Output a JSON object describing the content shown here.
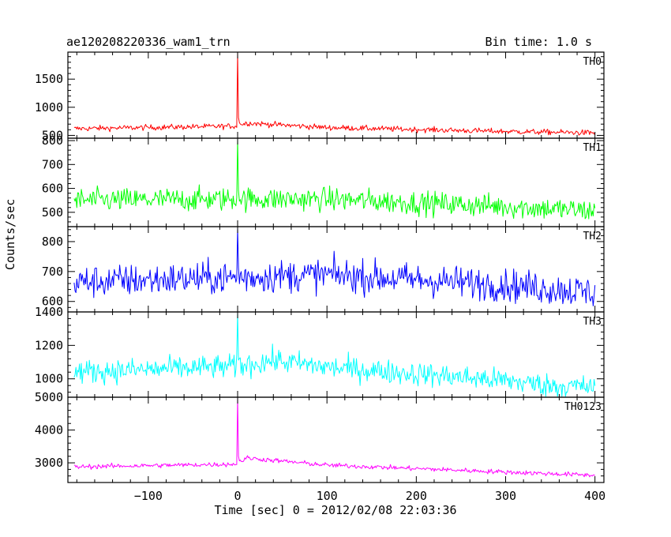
{
  "header": {
    "title": "ae120208220336_wam1_trn",
    "bin_time": "Bin time: 1.0 s"
  },
  "axes": {
    "xlabel": "Time [sec] 0 = 2012/02/08 22:03:36",
    "ylabel": "Counts/sec"
  },
  "chart_data": {
    "type": "line",
    "xlim": [
      -190,
      410
    ],
    "xticks": [
      -100,
      0,
      100,
      200,
      300,
      400
    ],
    "xtick_labels": [
      "−100",
      "0",
      "100",
      "200",
      "300",
      "400"
    ],
    "x_start": -183,
    "x_end": 400,
    "bin_seconds": 1.0,
    "panels": [
      {
        "name": "TH0",
        "color": "#ff0000",
        "ylim": [
          450,
          1980
        ],
        "yticks": [
          500,
          1000,
          1500
        ],
        "ytick_labels": [
          "500",
          "1000",
          "1500"
        ],
        "trend_points": [
          [
            -183,
            620
          ],
          [
            0,
            665
          ],
          [
            10,
            720
          ],
          [
            100,
            640
          ],
          [
            300,
            570
          ],
          [
            400,
            545
          ]
        ],
        "noise": 45,
        "spike": {
          "x": 0,
          "peak": 1980
        }
      },
      {
        "name": "TH1",
        "color": "#00ff00",
        "ylim": [
          440,
          810
        ],
        "yticks": [
          500,
          600,
          700,
          800
        ],
        "ytick_labels": [
          "500",
          "600",
          "700",
          "800"
        ],
        "trend_points": [
          [
            -183,
            550
          ],
          [
            0,
            555
          ],
          [
            100,
            555
          ],
          [
            300,
            525
          ],
          [
            400,
            505
          ]
        ],
        "noise": 45,
        "spike": {
          "x": 0,
          "peak": 805
        }
      },
      {
        "name": "TH2",
        "color": "#0000ff",
        "ylim": [
          565,
          850
        ],
        "yticks": [
          600,
          700,
          800
        ],
        "ytick_labels": [
          "600",
          "700",
          "800"
        ],
        "trend_points": [
          [
            -183,
            665
          ],
          [
            0,
            680
          ],
          [
            100,
            690
          ],
          [
            300,
            655
          ],
          [
            400,
            630
          ]
        ],
        "noise": 50,
        "spike": {
          "x": 0,
          "peak": 845
        }
      },
      {
        "name": "TH3",
        "color": "#00ffff",
        "ylim": [
          890,
          1400
        ],
        "yticks": [
          1000,
          1200,
          1400
        ],
        "ytick_labels": [
          "1000",
          "1200",
          "1400"
        ],
        "trend_points": [
          [
            -183,
            1040
          ],
          [
            0,
            1075
          ],
          [
            40,
            1110
          ],
          [
            100,
            1070
          ],
          [
            300,
            990
          ],
          [
            350,
            960
          ],
          [
            400,
            950
          ]
        ],
        "noise": 65,
        "spike": {
          "x": 0,
          "peak": 1395
        }
      },
      {
        "name": "TH0123",
        "color": "#ff00ff",
        "ylim": [
          2400,
          5000
        ],
        "yticks": [
          3000,
          4000,
          5000
        ],
        "ytick_labels": [
          "3000",
          "4000",
          "5000"
        ],
        "trend_points": [
          [
            -183,
            2880
          ],
          [
            0,
            2960
          ],
          [
            10,
            3150
          ],
          [
            100,
            2930
          ],
          [
            300,
            2720
          ],
          [
            400,
            2620
          ]
        ],
        "noise": 65,
        "spike": {
          "x": 0,
          "peak": 5000
        }
      }
    ]
  }
}
